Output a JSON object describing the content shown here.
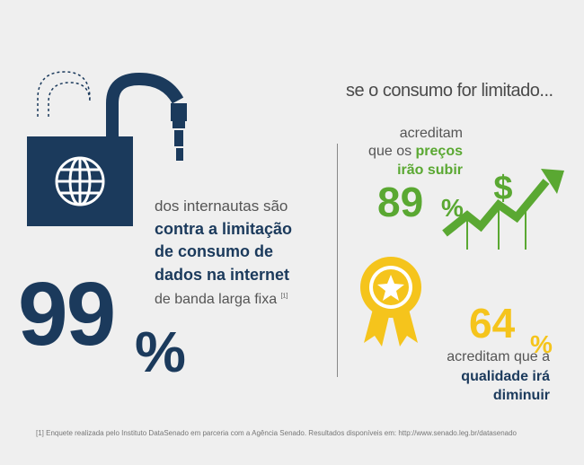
{
  "headline": "se o consumo for limitado...",
  "main_stat": {
    "number": "99",
    "percent": "%",
    "line1": "dos internautas são",
    "bold1": "contra a limitação",
    "bold2": "de consumo de",
    "bold3": "dados na internet",
    "line5": "de banda larga fixa",
    "footnote_ref": "[1]"
  },
  "prices_stat": {
    "line1": "acreditam",
    "line2_prefix": "que os ",
    "line2_bold": "preços",
    "line3": "irão subir",
    "number": "89",
    "percent": "%"
  },
  "quality_stat": {
    "number": "64",
    "percent": "%",
    "line1": "acreditam que a",
    "line2": "qualidade irá",
    "line3": "diminuir"
  },
  "footnote": "[1] Enquete realizada pelo Instituto DataSenado em parceria com a Agência Senado. Resultados disponíveis em: http://www.senado.leg.br/datasenado",
  "icons": {
    "lock": "padlock-with-cable-icon",
    "globe": "globe-icon",
    "chart": "rising-arrow-chart-icon",
    "dollar": "dollar-sign-icon",
    "medal": "award-medal-icon"
  },
  "colors": {
    "navy": "#1b3a5c",
    "green": "#5aa832",
    "yellow": "#f5c41c",
    "background": "#efefef"
  }
}
